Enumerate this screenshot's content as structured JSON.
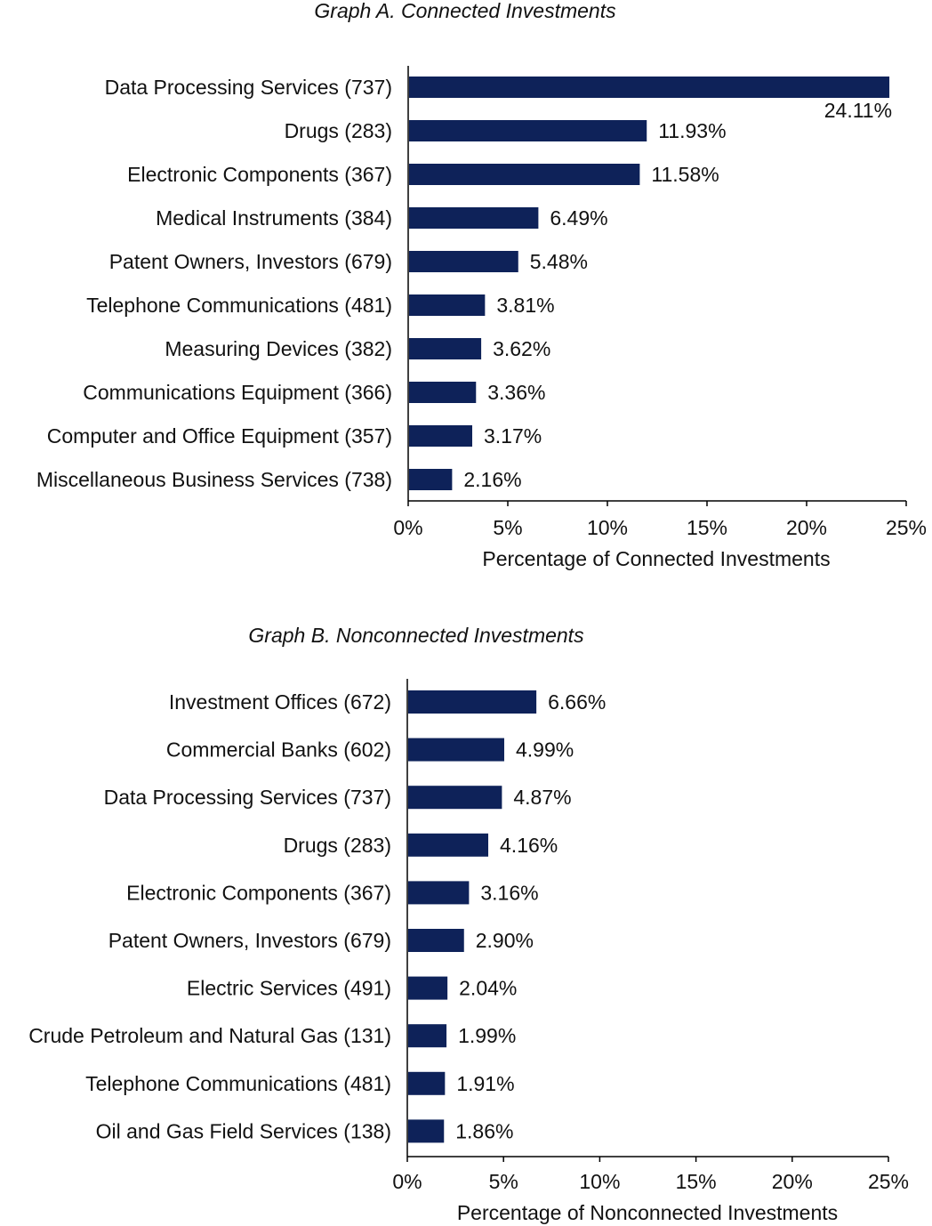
{
  "chart_data": [
    {
      "type": "bar",
      "orientation": "horizontal",
      "title": "Graph A. Connected Investments",
      "xlabel": "Percentage of Connected Investments",
      "ylabel": "",
      "xlim": [
        0,
        25
      ],
      "ticks": [
        "0%",
        "5%",
        "10%",
        "15%",
        "20%",
        "25%"
      ],
      "bar_color": "#0e2259",
      "categories": [
        "Data Processing Services (737)",
        "Drugs (283)",
        "Electronic Components (367)",
        "Medical Instruments (384)",
        "Patent Owners, Investors (679)",
        "Telephone Communications (481)",
        "Measuring Devices (382)",
        "Communications Equipment (366)",
        "Computer and Office Equipment (357)",
        "Miscellaneous Business Services (738)"
      ],
      "values": [
        24.11,
        11.93,
        11.58,
        6.49,
        5.48,
        3.81,
        3.62,
        3.36,
        3.17,
        2.16
      ],
      "labels": [
        "24.11%",
        "11.93%",
        "11.58%",
        "6.49%",
        "5.48%",
        "3.81%",
        "3.62%",
        "3.36%",
        "3.17%",
        "2.16%"
      ]
    },
    {
      "type": "bar",
      "orientation": "horizontal",
      "title": "Graph B. Nonconnected Investments",
      "xlabel": "Percentage of Nonconnected Investments",
      "ylabel": "",
      "xlim": [
        0,
        25
      ],
      "ticks": [
        "0%",
        "5%",
        "10%",
        "15%",
        "20%",
        "25%"
      ],
      "bar_color": "#0e2259",
      "categories": [
        "Investment Offices (672)",
        "Commercial Banks (602)",
        "Data Processing Services (737)",
        "Drugs (283)",
        "Electronic Components (367)",
        "Patent Owners, Investors (679)",
        "Electric Services (491)",
        "Crude Petroleum and Natural Gas (131)",
        "Telephone Communications (481)",
        "Oil and Gas Field Services (138)"
      ],
      "values": [
        6.66,
        4.99,
        4.87,
        4.16,
        3.16,
        2.9,
        2.04,
        1.99,
        1.91,
        1.86
      ],
      "labels": [
        "6.66%",
        "4.99%",
        "4.87%",
        "4.16%",
        "3.16%",
        "2.90%",
        "2.04%",
        "1.99%",
        "1.91%",
        "1.86%"
      ]
    }
  ]
}
